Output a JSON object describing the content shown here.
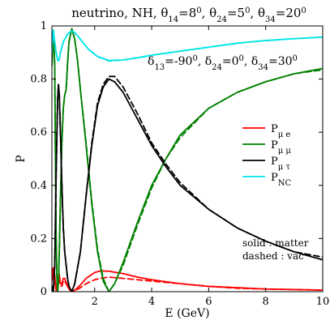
{
  "chart_data": {
    "type": "line",
    "title_parts": [
      {
        "t": "neutrino, NH, θ",
        "sub": false
      },
      {
        "t": "14",
        "sub": true
      },
      {
        "t": "=8",
        "sub": false
      },
      {
        "t": "0",
        "sup": true
      },
      {
        "t": ", θ",
        "sub": false
      },
      {
        "t": "24",
        "sub": true
      },
      {
        "t": "=5",
        "sub": false
      },
      {
        "t": "0",
        "sup": true
      },
      {
        "t": ", θ",
        "sub": false
      },
      {
        "t": "34",
        "sub": true
      },
      {
        "t": "=20",
        "sub": false
      },
      {
        "t": "0",
        "sup": true
      }
    ],
    "annotation_parts": [
      {
        "t": "δ",
        "sub": false
      },
      {
        "t": "13",
        "sub": true
      },
      {
        "t": "=-90",
        "sub": false
      },
      {
        "t": "0",
        "sup": true
      },
      {
        "t": ", δ",
        "sub": false
      },
      {
        "t": "24",
        "sub": true
      },
      {
        "t": "=0",
        "sub": false
      },
      {
        "t": "0",
        "sup": true
      },
      {
        "t": ", δ",
        "sub": false
      },
      {
        "t": "34",
        "sub": true
      },
      {
        "t": "=30",
        "sub": false
      },
      {
        "t": "0",
        "sup": true
      }
    ],
    "xlabel": "E (GeV)",
    "ylabel": "P",
    "xlim": [
      0.5,
      10
    ],
    "ylim": [
      0,
      1
    ],
    "xticks": [
      2,
      4,
      6,
      8,
      10
    ],
    "yticks": [
      0,
      0.2,
      0.4,
      0.6,
      0.8,
      1
    ],
    "ytick_labels": [
      "0",
      "0.2",
      "0.4",
      "0.6",
      "0.8",
      "1"
    ],
    "legend": {
      "placement": "right",
      "entries": [
        {
          "main": "P",
          "sub": "μ e",
          "color": "#ff0000"
        },
        {
          "main": "P",
          "sub": "μ μ",
          "color": "#008000"
        },
        {
          "main": "P",
          "sub": "μ τ",
          "color": "#000000"
        },
        {
          "main": "P",
          "sub": "NC",
          "color": "#00e5e5"
        }
      ]
    },
    "notes": [
      "solid : matter",
      "dashed : vac"
    ],
    "series": [
      {
        "key": "Pmue",
        "color": "#ff0000",
        "style": "solid",
        "points": [
          [
            0.5,
            0.05
          ],
          [
            0.55,
            0.09
          ],
          [
            0.6,
            0.06
          ],
          [
            0.65,
            0.0
          ],
          [
            0.7,
            0.04
          ],
          [
            0.75,
            0.07
          ],
          [
            0.8,
            0.03
          ],
          [
            0.85,
            0.03
          ],
          [
            0.9,
            0.05
          ],
          [
            0.95,
            0.05
          ],
          [
            1.0,
            0.035
          ],
          [
            1.1,
            0.01
          ],
          [
            1.2,
            0.0
          ],
          [
            1.3,
            0.005
          ],
          [
            1.5,
            0.025
          ],
          [
            1.7,
            0.05
          ],
          [
            2.0,
            0.072
          ],
          [
            2.2,
            0.078
          ],
          [
            2.5,
            0.077
          ],
          [
            3.0,
            0.068
          ],
          [
            3.5,
            0.055
          ],
          [
            4.0,
            0.045
          ],
          [
            5.0,
            0.03
          ],
          [
            6.0,
            0.02
          ],
          [
            7.0,
            0.015
          ],
          [
            8.0,
            0.01
          ],
          [
            9.0,
            0.008
          ],
          [
            10.0,
            0.006
          ]
        ]
      },
      {
        "key": "Pmue_vac",
        "color": "#ff0000",
        "style": "dashed",
        "points": [
          [
            0.5,
            0.04
          ],
          [
            0.55,
            0.07
          ],
          [
            0.6,
            0.05
          ],
          [
            0.65,
            0.0
          ],
          [
            0.7,
            0.03
          ],
          [
            0.75,
            0.06
          ],
          [
            0.8,
            0.025
          ],
          [
            0.85,
            0.02
          ],
          [
            0.9,
            0.04
          ],
          [
            0.95,
            0.04
          ],
          [
            1.0,
            0.03
          ],
          [
            1.1,
            0.01
          ],
          [
            1.2,
            0.0
          ],
          [
            1.3,
            0.003
          ],
          [
            1.5,
            0.015
          ],
          [
            1.7,
            0.03
          ],
          [
            2.0,
            0.045
          ],
          [
            2.2,
            0.05
          ],
          [
            2.5,
            0.055
          ],
          [
            3.0,
            0.05
          ],
          [
            3.5,
            0.045
          ],
          [
            4.0,
            0.04
          ],
          [
            5.0,
            0.03
          ],
          [
            6.0,
            0.02
          ],
          [
            7.0,
            0.013
          ],
          [
            8.0,
            0.01
          ],
          [
            9.0,
            0.008
          ],
          [
            10.0,
            0.006
          ]
        ]
      },
      {
        "key": "Pmumu",
        "color": "#008000",
        "style": "solid",
        "points": [
          [
            0.5,
            0.85
          ],
          [
            0.55,
            0.98
          ],
          [
            0.6,
            0.85
          ],
          [
            0.62,
            0.55
          ],
          [
            0.65,
            0.2
          ],
          [
            0.68,
            0.04
          ],
          [
            0.7,
            0.0
          ],
          [
            0.73,
            0.03
          ],
          [
            0.76,
            0.15
          ],
          [
            0.8,
            0.35
          ],
          [
            0.85,
            0.56
          ],
          [
            0.9,
            0.69
          ],
          [
            0.95,
            0.74
          ],
          [
            1.0,
            0.76
          ],
          [
            1.05,
            0.86
          ],
          [
            1.1,
            0.94
          ],
          [
            1.2,
            0.99
          ],
          [
            1.3,
            0.95
          ],
          [
            1.4,
            0.87
          ],
          [
            1.5,
            0.76
          ],
          [
            1.7,
            0.55
          ],
          [
            1.9,
            0.33
          ],
          [
            2.1,
            0.15
          ],
          [
            2.3,
            0.04
          ],
          [
            2.5,
            0.0
          ],
          [
            2.7,
            0.03
          ],
          [
            3.0,
            0.11
          ],
          [
            3.5,
            0.26
          ],
          [
            4.0,
            0.4
          ],
          [
            4.5,
            0.5
          ],
          [
            5.0,
            0.59
          ],
          [
            6.0,
            0.69
          ],
          [
            7.0,
            0.75
          ],
          [
            8.0,
            0.79
          ],
          [
            9.0,
            0.82
          ],
          [
            10.0,
            0.84
          ]
        ]
      },
      {
        "key": "Pmumu_vac",
        "color": "#008000",
        "style": "dashed",
        "points": [
          [
            0.5,
            0.85
          ],
          [
            0.55,
            0.98
          ],
          [
            0.6,
            0.85
          ],
          [
            0.62,
            0.55
          ],
          [
            0.65,
            0.2
          ],
          [
            0.68,
            0.04
          ],
          [
            0.7,
            0.0
          ],
          [
            0.73,
            0.03
          ],
          [
            0.76,
            0.15
          ],
          [
            0.8,
            0.35
          ],
          [
            0.85,
            0.56
          ],
          [
            0.9,
            0.69
          ],
          [
            0.95,
            0.74
          ],
          [
            1.0,
            0.76
          ],
          [
            1.05,
            0.86
          ],
          [
            1.1,
            0.94
          ],
          [
            1.2,
            0.99
          ],
          [
            1.3,
            0.95
          ],
          [
            1.4,
            0.87
          ],
          [
            1.5,
            0.76
          ],
          [
            1.7,
            0.56
          ],
          [
            1.9,
            0.34
          ],
          [
            2.1,
            0.16
          ],
          [
            2.3,
            0.05
          ],
          [
            2.5,
            0.0
          ],
          [
            2.7,
            0.03
          ],
          [
            3.0,
            0.1
          ],
          [
            3.5,
            0.25
          ],
          [
            4.0,
            0.39
          ],
          [
            4.5,
            0.5
          ],
          [
            5.0,
            0.58
          ],
          [
            6.0,
            0.69
          ],
          [
            7.0,
            0.75
          ],
          [
            8.0,
            0.79
          ],
          [
            9.0,
            0.82
          ],
          [
            10.0,
            0.835
          ]
        ]
      },
      {
        "key": "Pmutau",
        "color": "#000000",
        "style": "solid",
        "points": [
          [
            0.5,
            0.02
          ],
          [
            0.55,
            0.0
          ],
          [
            0.6,
            0.1
          ],
          [
            0.65,
            0.45
          ],
          [
            0.7,
            0.72
          ],
          [
            0.73,
            0.78
          ],
          [
            0.76,
            0.74
          ],
          [
            0.8,
            0.6
          ],
          [
            0.85,
            0.4
          ],
          [
            0.9,
            0.24
          ],
          [
            0.95,
            0.15
          ],
          [
            1.0,
            0.1
          ],
          [
            1.05,
            0.05
          ],
          [
            1.1,
            0.02
          ],
          [
            1.2,
            0.0
          ],
          [
            1.3,
            0.03
          ],
          [
            1.5,
            0.15
          ],
          [
            1.7,
            0.36
          ],
          [
            1.9,
            0.55
          ],
          [
            2.1,
            0.7
          ],
          [
            2.3,
            0.77
          ],
          [
            2.5,
            0.8
          ],
          [
            2.7,
            0.79
          ],
          [
            3.0,
            0.75
          ],
          [
            3.5,
            0.65
          ],
          [
            4.0,
            0.55
          ],
          [
            4.5,
            0.47
          ],
          [
            5.0,
            0.4
          ],
          [
            6.0,
            0.31
          ],
          [
            7.0,
            0.24
          ],
          [
            8.0,
            0.19
          ],
          [
            9.0,
            0.15
          ],
          [
            10.0,
            0.12
          ]
        ]
      },
      {
        "key": "Pmutau_vac",
        "color": "#000000",
        "style": "dashed",
        "points": [
          [
            0.5,
            0.02
          ],
          [
            0.55,
            0.0
          ],
          [
            0.6,
            0.1
          ],
          [
            0.65,
            0.45
          ],
          [
            0.7,
            0.72
          ],
          [
            0.73,
            0.78
          ],
          [
            0.76,
            0.74
          ],
          [
            0.8,
            0.6
          ],
          [
            0.85,
            0.4
          ],
          [
            0.9,
            0.24
          ],
          [
            0.95,
            0.15
          ],
          [
            1.0,
            0.1
          ],
          [
            1.05,
            0.05
          ],
          [
            1.1,
            0.02
          ],
          [
            1.2,
            0.0
          ],
          [
            1.3,
            0.03
          ],
          [
            1.5,
            0.15
          ],
          [
            1.7,
            0.36
          ],
          [
            1.9,
            0.56
          ],
          [
            2.1,
            0.71
          ],
          [
            2.3,
            0.78
          ],
          [
            2.5,
            0.81
          ],
          [
            2.7,
            0.81
          ],
          [
            3.0,
            0.77
          ],
          [
            3.5,
            0.67
          ],
          [
            4.0,
            0.56
          ],
          [
            4.5,
            0.48
          ],
          [
            5.0,
            0.41
          ],
          [
            6.0,
            0.31
          ],
          [
            7.0,
            0.24
          ],
          [
            8.0,
            0.19
          ],
          [
            9.0,
            0.15
          ],
          [
            10.0,
            0.13
          ]
        ]
      },
      {
        "key": "PNC",
        "color": "#00e5e5",
        "style": "solid",
        "points": [
          [
            0.5,
            0.9
          ],
          [
            0.55,
            0.985
          ],
          [
            0.6,
            0.94
          ],
          [
            0.65,
            0.9
          ],
          [
            0.7,
            0.87
          ],
          [
            0.75,
            0.87
          ],
          [
            0.8,
            0.9
          ],
          [
            0.9,
            0.94
          ],
          [
            1.0,
            0.96
          ],
          [
            1.1,
            0.975
          ],
          [
            1.2,
            0.98
          ],
          [
            1.3,
            0.975
          ],
          [
            1.5,
            0.95
          ],
          [
            1.8,
            0.91
          ],
          [
            2.1,
            0.885
          ],
          [
            2.5,
            0.87
          ],
          [
            3.0,
            0.872
          ],
          [
            3.5,
            0.88
          ],
          [
            4.0,
            0.89
          ],
          [
            5.0,
            0.905
          ],
          [
            6.0,
            0.92
          ],
          [
            7.0,
            0.935
          ],
          [
            8.0,
            0.945
          ],
          [
            9.0,
            0.952
          ],
          [
            10.0,
            0.958
          ]
        ]
      },
      {
        "key": "PNC_vac",
        "color": "#00e5e5",
        "style": "dashed",
        "points": [
          [
            0.5,
            0.9
          ],
          [
            0.55,
            0.985
          ],
          [
            0.6,
            0.94
          ],
          [
            0.65,
            0.9
          ],
          [
            0.7,
            0.87
          ],
          [
            0.75,
            0.87
          ],
          [
            0.8,
            0.9
          ],
          [
            0.9,
            0.94
          ],
          [
            1.0,
            0.96
          ],
          [
            1.1,
            0.975
          ],
          [
            1.2,
            0.98
          ],
          [
            1.3,
            0.975
          ],
          [
            1.5,
            0.95
          ],
          [
            1.8,
            0.91
          ],
          [
            2.1,
            0.885
          ],
          [
            2.5,
            0.868
          ],
          [
            3.0,
            0.872
          ],
          [
            3.5,
            0.88
          ],
          [
            4.0,
            0.89
          ],
          [
            5.0,
            0.905
          ],
          [
            6.0,
            0.92
          ],
          [
            7.0,
            0.935
          ],
          [
            8.0,
            0.945
          ],
          [
            9.0,
            0.952
          ],
          [
            10.0,
            0.958
          ]
        ]
      }
    ]
  }
}
